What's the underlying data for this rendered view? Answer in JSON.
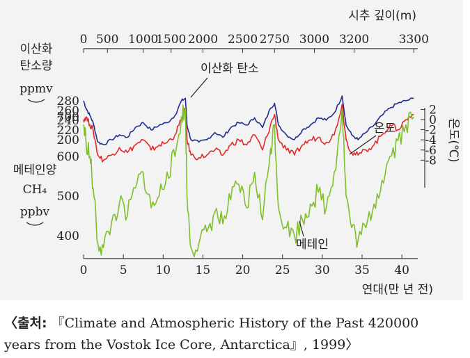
{
  "chart_data": {
    "type": "line",
    "title": "",
    "top_axis": {
      "label": "시추 깊이(m)",
      "ticks": [
        0,
        500,
        1000,
        1500,
        2000,
        2500,
        2750,
        3000,
        3200,
        3300
      ],
      "tick_positions_kyr": [
        0,
        3,
        7.5,
        11,
        15,
        20,
        24,
        29,
        34,
        41.5
      ]
    },
    "x_axis": {
      "label": "연대(만 년 전)",
      "ticks": [
        0,
        5,
        10,
        15,
        20,
        25,
        30,
        35,
        40
      ],
      "range": [
        0,
        42
      ]
    },
    "co2_axis": {
      "label_lines": [
        "이산화",
        "탄소량",
        "ppmv"
      ],
      "ticks": [
        200,
        220,
        240,
        260,
        280
      ],
      "range": [
        180,
        300
      ]
    },
    "ch4_axis": {
      "label_lines": [
        "메테인양",
        "CH₄",
        "ppbv"
      ],
      "ticks": [
        400,
        500,
        600,
        700
      ],
      "range": [
        300,
        800
      ]
    },
    "temp_axis": {
      "label": "온도(℃)",
      "ticks": [
        2,
        0,
        -2,
        -4,
        -6,
        -8
      ],
      "range": [
        -10,
        4
      ]
    },
    "series": [
      {
        "name": "이산화 탄소",
        "unit": "ppmv",
        "color": "#1f2d8f",
        "x": [
          0,
          0.3,
          0.8,
          1.2,
          1.8,
          2.5,
          3.5,
          4.5,
          5.5,
          6.5,
          7.5,
          8.5,
          9.5,
          10.5,
          11.5,
          12.3,
          12.8,
          13.0,
          13.5,
          14.5,
          15.5,
          16.5,
          17.5,
          18.5,
          19.5,
          20.5,
          21.5,
          22.5,
          23.5,
          24.0,
          24.5,
          25.5,
          26.5,
          27.5,
          28.5,
          29.5,
          30.5,
          31.5,
          32.5,
          33.0,
          33.7,
          34.5,
          35.5,
          36.5,
          37.5,
          38.5,
          39.5,
          40.5,
          41.5
        ],
        "values": [
          280,
          265,
          250,
          235,
          195,
          190,
          200,
          210,
          205,
          225,
          235,
          220,
          230,
          235,
          250,
          280,
          285,
          230,
          200,
          195,
          200,
          215,
          205,
          225,
          235,
          230,
          245,
          225,
          265,
          275,
          230,
          210,
          200,
          220,
          230,
          245,
          240,
          255,
          290,
          230,
          210,
          200,
          215,
          230,
          250,
          265,
          275,
          280,
          285
        ]
      },
      {
        "name": "온도",
        "unit": "℃",
        "color": "#e12a2a",
        "x": [
          0,
          0.3,
          0.8,
          1.2,
          1.8,
          2.5,
          3.5,
          4.5,
          5.5,
          6.5,
          7.5,
          8.5,
          9.5,
          10.5,
          11.5,
          12.3,
          12.8,
          13.0,
          13.5,
          14.5,
          15.5,
          16.5,
          17.5,
          18.5,
          19.5,
          20.5,
          21.5,
          22.5,
          23.5,
          24.0,
          24.5,
          25.5,
          26.5,
          27.5,
          28.5,
          29.5,
          30.5,
          31.5,
          32.5,
          33.0,
          33.7,
          34.5,
          35.5,
          36.5,
          37.5,
          38.5,
          39.5,
          40.5,
          41.5
        ],
        "values": [
          0,
          0.5,
          -1,
          -2,
          -7,
          -8,
          -7,
          -5.5,
          -6.5,
          -5,
          -4,
          -6,
          -5,
          -4.5,
          -3,
          0,
          2,
          -4,
          -7,
          -7.5,
          -7,
          -6,
          -7,
          -5,
          -4,
          -5,
          -3,
          -6,
          -1,
          1,
          -4,
          -6,
          -7,
          -5,
          -4,
          -3.5,
          -4.5,
          -3,
          3,
          -4,
          -6.5,
          -7,
          -6,
          -5,
          -3,
          -1,
          -2,
          0,
          1
        ]
      },
      {
        "name": "메테인",
        "unit": "ppbv",
        "color": "#7fbf2a",
        "x": [
          0,
          0.3,
          0.8,
          1.2,
          1.8,
          2.5,
          3.5,
          4.5,
          5.5,
          6.5,
          7.5,
          8.5,
          9.5,
          10.5,
          11.5,
          12.3,
          12.8,
          13.0,
          13.5,
          14.5,
          15.5,
          16.5,
          17.5,
          18.5,
          19.5,
          20.5,
          21.5,
          22.5,
          23.5,
          24.0,
          24.5,
          25.5,
          26.5,
          27.5,
          28.5,
          29.5,
          30.5,
          31.5,
          32.5,
          33.0,
          33.7,
          34.5,
          35.5,
          36.5,
          37.5,
          38.5,
          39.5,
          40.5,
          41.5
        ],
        "values": [
          680,
          640,
          600,
          520,
          380,
          370,
          430,
          480,
          450,
          520,
          560,
          470,
          500,
          560,
          600,
          700,
          720,
          500,
          370,
          380,
          410,
          460,
          430,
          490,
          530,
          470,
          560,
          440,
          620,
          680,
          470,
          420,
          400,
          440,
          480,
          510,
          470,
          560,
          720,
          500,
          420,
          390,
          420,
          480,
          540,
          600,
          640,
          680,
          700
        ]
      }
    ],
    "annotations": [
      "이산화 탄소",
      "온도",
      "메테인"
    ]
  },
  "source": {
    "prefix": "〈출처:",
    "line1": " 『Climate and Atmospheric History of the Past 420000",
    "line2": "years from the Vostok Ice Core, Antarctica』, 1999〉"
  },
  "colors": {
    "background": "#f3f3f3",
    "axis": "#333333"
  }
}
